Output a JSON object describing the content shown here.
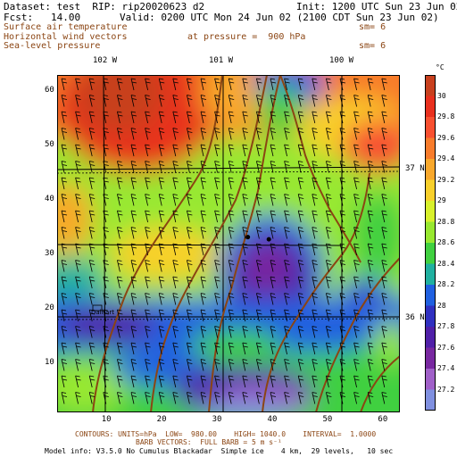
{
  "header": {
    "dataset": "Dataset: test  RIP: rip20020623 d2",
    "init": "Init: 1200 UTC Sun 23 Jun 02",
    "fcst": "Fcst:   14.00",
    "valid": "Valid: 0200 UTC Mon 24 Jun 02 (2100 CDT Sun 23 Jun 02)",
    "fields": [
      {
        "name": "Surface air temperature",
        "extra": "",
        "sm": "sm= 6"
      },
      {
        "name": "Horizontal wind vectors",
        "extra": "at pressure =  900 hPa",
        "sm": ""
      },
      {
        "name": "Sea-level pressure",
        "extra": "",
        "sm": "sm= 6"
      }
    ]
  },
  "map": {
    "lon_labels": [
      "102 W",
      "101 W",
      "100 W"
    ],
    "lat_labels": [
      "37 N",
      "36 N"
    ],
    "station_label": "Dalhart",
    "x_ticks": [
      10,
      20,
      30,
      40,
      50,
      60
    ],
    "y_ticks": [
      10,
      20,
      30,
      40,
      50,
      60
    ],
    "grid_range": [
      1,
      63
    ],
    "points": [
      {
        "x": 35.5,
        "y": 33.2
      },
      {
        "x": 39.3,
        "y": 32.8
      }
    ]
  },
  "colorbar": {
    "unit": "°C",
    "labels": [
      "30",
      "29.8",
      "29.6",
      "29.4",
      "29.2",
      "29",
      "28.8",
      "28.6",
      "28.4",
      "28.2",
      "28",
      "27.8",
      "27.6",
      "27.4",
      "27.2"
    ],
    "colors": [
      "#c8401e",
      "#e8301e",
      "#f85030",
      "#f87c2c",
      "#f8a82c",
      "#f8d02c",
      "#d8f02c",
      "#98e830",
      "#40d040",
      "#20b0a0",
      "#2060e0",
      "#3030c0",
      "#5020a8",
      "#7828a0",
      "#a060c8",
      "#8090e0"
    ]
  },
  "footer": {
    "line1": "CONTOURS: UNITS=hPa  LOW=  980.00    HIGH= 1040.0    INTERVAL=  1.0000",
    "line2": "BARB VECTORS:  FULL BARB = 5 m s⁻¹",
    "model": "Model info: V3.5.0 No Cumulus Blackadar  Simple ice    4 km,  29 levels,   10 sec"
  }
}
